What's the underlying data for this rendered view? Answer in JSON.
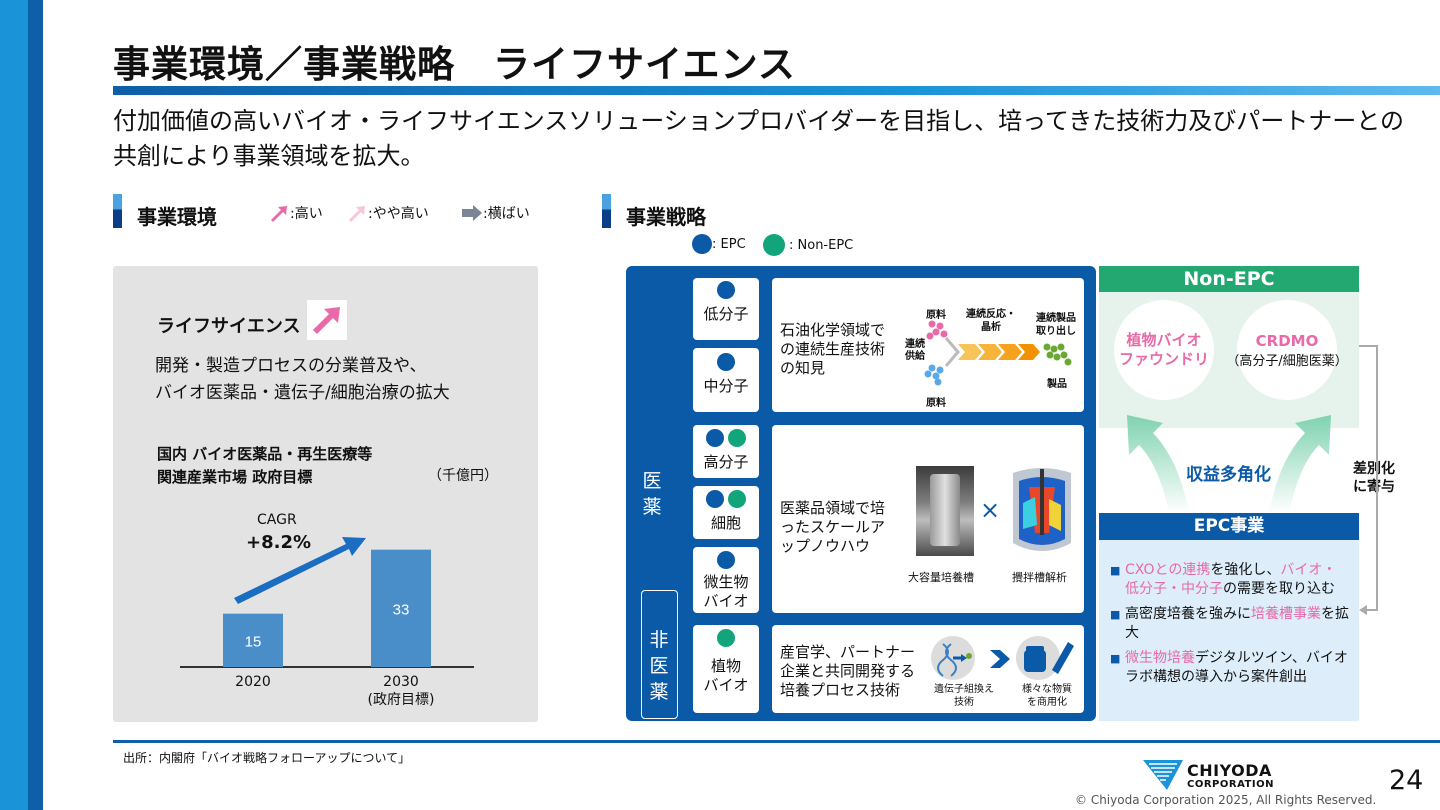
{
  "title": "事業環境／事業戦略　ライフサイエンス",
  "lead": "付加価値の高いバイオ・ライフサイエンスソリューションプロバイダーを目指し、培ってきた技術力及びパートナーとの共創により事業領域を拡大。",
  "env": {
    "heading": "事業環境",
    "legend": [
      {
        "label": ":高い",
        "color": "#e86aa8",
        "icon": "arrow-up-right-icon"
      },
      {
        "label": ":やや高い",
        "color": "#f7c6da",
        "icon": "arrow-up-right-icon"
      },
      {
        "label": ":横ばい",
        "color": "#7b8595",
        "icon": "arrow-right-icon"
      }
    ],
    "segment": "ライフサイエンス",
    "segment_desc_1": "開発・製造プロセスの分業普及や、",
    "segment_desc_2": "バイオ医薬品・遺伝子/細胞治療の拡大",
    "market_title_1": "国内 バイオ医薬品・再生医療等",
    "market_title_2": "関連産業市場 政府目標",
    "unit": "（千億円）",
    "cagr_label": "CAGR",
    "cagr_value": "+8.2%"
  },
  "chart_data": {
    "type": "bar",
    "categories": [
      "2020",
      "2030\n(政府目標)"
    ],
    "category_labels": [
      [
        "2020"
      ],
      [
        "2030",
        "(政府目標)"
      ]
    ],
    "values": [
      15,
      33
    ],
    "ylabel": "（千億円）",
    "ylim": [
      0,
      36
    ],
    "annotation": "CAGR +8.2%",
    "bar_color": "#4a8ec9"
  },
  "strategy": {
    "heading": "事業戦略",
    "legend_epc": ": EPC",
    "legend_nonepc": ": Non-EPC",
    "side_pharma": "医薬",
    "side_nonpharma": "非医薬",
    "categories": [
      {
        "label": "低分子",
        "dots": [
          "b"
        ]
      },
      {
        "label": "中分子",
        "dots": [
          "b"
        ]
      },
      {
        "label": "高分子",
        "dots": [
          "b",
          "g"
        ]
      },
      {
        "label": "細胞",
        "dots": [
          "b",
          "g"
        ]
      },
      {
        "label": "微生物\nバイオ",
        "dots": [
          "b"
        ]
      },
      {
        "label": "植物\nバイオ",
        "dots": [
          "g"
        ]
      }
    ],
    "desc_1": "石油化学領域での連続生産技術の知見",
    "desc_2": "医薬品領域で培ったスケールアップノウハウ",
    "desc_3": "産官学、パートナー企業と共同開発する培養プロセス技術",
    "flow": {
      "raw_top": "原料",
      "raw_bottom": "原料",
      "feed": "連続\n供給",
      "reaction": "連続反応・\n晶析",
      "extract": "連続製品\n取り出し",
      "product": "製品"
    },
    "tank_label": "大容量培養槽",
    "cfd_label": "攪拌槽解析",
    "times": "×",
    "gene_label": "遺伝子組換え\n技術",
    "commercial_label": "様々な物質\nを商用化"
  },
  "nonepc": {
    "head": "Non-EPC",
    "circle1": "植物バイオ\nファウンドリ",
    "circle2_title": "CRDMO",
    "circle2_sub": "（高分子/細胞医薬）",
    "diversify": "収益多角化",
    "diff": "差別化\nに寄与"
  },
  "epc": {
    "head": "EPC事業",
    "item1_a": "CXOとの連携",
    "item1_b": "を強化し、",
    "item1_c": "バイオ・低分子・中分子",
    "item1_d": "の需要を取り込む",
    "item2_a": "高密度培養を強みに",
    "item2_b": "培養槽事業",
    "item2_c": "を拡大",
    "item3_a": "微生物培養",
    "item3_b": "デジタルツイン、バイオラボ構想の導入から案件創出"
  },
  "footer": {
    "source": "出所：内閣府「バイオ戦略フォローアップについて」",
    "logo_1": "CHIYODA",
    "logo_2": "CORPORATION",
    "copyright": "© Chiyoda Corporation 2025, All Rights Reserved.",
    "page": "24"
  },
  "colors": {
    "navy": "#0b5aa8",
    "green": "#23a872",
    "pink": "#e86aa8",
    "bar": "#4a8ec9"
  }
}
